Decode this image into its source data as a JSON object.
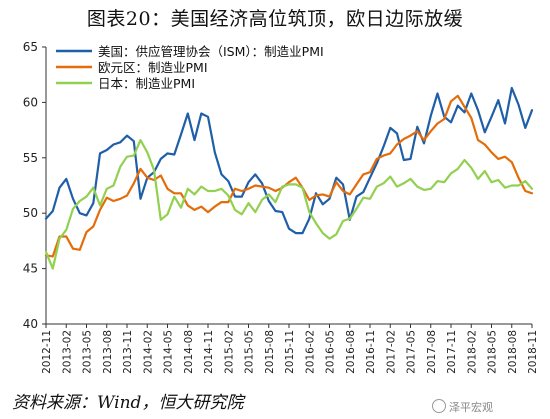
{
  "header": {
    "title": "图表20：美国经济高位筑顶，欧日边际放缓"
  },
  "footer": {
    "source": "资料来源：Wind，恒大研究院",
    "watermark": "泽平宏观"
  },
  "chart_data": {
    "type": "line",
    "title": "图表20：美国经济高位筑顶，欧日边际放缓",
    "xlabel": "",
    "ylabel": "",
    "ylim": [
      40,
      65
    ],
    "yticks": [
      40,
      45,
      50,
      55,
      60,
      65
    ],
    "grid": false,
    "legend_position": "top-left",
    "x": [
      "2012-11",
      "2012-12",
      "2013-01",
      "2013-02",
      "2013-03",
      "2013-04",
      "2013-05",
      "2013-06",
      "2013-07",
      "2013-08",
      "2013-09",
      "2013-10",
      "2013-11",
      "2013-12",
      "2014-01",
      "2014-02",
      "2014-03",
      "2014-04",
      "2014-05",
      "2014-06",
      "2014-07",
      "2014-08",
      "2014-09",
      "2014-10",
      "2014-11",
      "2014-12",
      "2015-01",
      "2015-02",
      "2015-03",
      "2015-04",
      "2015-05",
      "2015-06",
      "2015-07",
      "2015-08",
      "2015-09",
      "2015-10",
      "2015-11",
      "2015-12",
      "2016-01",
      "2016-02",
      "2016-03",
      "2016-04",
      "2016-05",
      "2016-06",
      "2016-07",
      "2016-08",
      "2016-09",
      "2016-10",
      "2016-11",
      "2016-12",
      "2017-01",
      "2017-02",
      "2017-03",
      "2017-04",
      "2017-05",
      "2017-06",
      "2017-07",
      "2017-08",
      "2017-09",
      "2017-10",
      "2017-11",
      "2017-12",
      "2018-01",
      "2018-02",
      "2018-03",
      "2018-04",
      "2018-05",
      "2018-06",
      "2018-07",
      "2018-08",
      "2018-09",
      "2018-10",
      "2018-11"
    ],
    "xtick_labels": [
      "2012-11",
      "2013-02",
      "2013-05",
      "2013-08",
      "2013-11",
      "2014-02",
      "2014-05",
      "2014-08",
      "2014-11",
      "2015-02",
      "2015-05",
      "2015-08",
      "2015-11",
      "2016-02",
      "2016-05",
      "2016-08",
      "2016-11",
      "2017-02",
      "2017-05",
      "2017-08",
      "2017-11",
      "2018-02",
      "2018-05",
      "2018-08",
      "2018-11"
    ],
    "series": [
      {
        "name": "美国：供应管理协会（ISM）：制造业PMI",
        "color": "#1f5fa8",
        "values": [
          49.5,
          50.2,
          52.3,
          53.1,
          51.3,
          50.0,
          49.8,
          50.9,
          55.4,
          55.7,
          56.2,
          56.4,
          57.0,
          56.5,
          51.3,
          53.2,
          53.7,
          54.9,
          55.4,
          55.3,
          57.1,
          59.0,
          56.6,
          59.0,
          58.7,
          55.5,
          53.5,
          52.9,
          51.5,
          51.5,
          52.8,
          53.5,
          52.7,
          51.1,
          50.2,
          50.1,
          48.6,
          48.2,
          48.2,
          49.5,
          51.8,
          50.8,
          51.3,
          53.2,
          52.6,
          49.4,
          51.5,
          51.9,
          53.2,
          54.5,
          56.0,
          57.7,
          57.2,
          54.8,
          54.9,
          57.8,
          56.3,
          58.8,
          60.8,
          58.7,
          58.2,
          59.7,
          59.1,
          60.8,
          59.3,
          57.3,
          58.7,
          60.2,
          58.1,
          61.3,
          59.8,
          57.7,
          59.3
        ]
      },
      {
        "name": "欧元区：制造业PMI",
        "color": "#e46c0a",
        "values": [
          46.2,
          46.1,
          47.9,
          47.9,
          46.8,
          46.7,
          48.3,
          48.8,
          50.3,
          51.4,
          51.1,
          51.3,
          51.6,
          52.7,
          54.0,
          53.2,
          53.0,
          53.4,
          52.2,
          51.8,
          51.8,
          50.7,
          50.3,
          50.6,
          50.1,
          50.6,
          51.0,
          51.0,
          52.2,
          52.0,
          52.2,
          52.5,
          52.4,
          52.3,
          52.0,
          52.3,
          52.8,
          53.2,
          52.3,
          51.2,
          51.6,
          51.7,
          51.5,
          52.8,
          52.0,
          51.7,
          52.6,
          53.5,
          53.7,
          54.9,
          55.2,
          55.4,
          56.2,
          56.7,
          57.0,
          57.4,
          56.6,
          57.4,
          58.1,
          58.5,
          60.1,
          60.6,
          59.6,
          58.6,
          56.6,
          56.2,
          55.5,
          54.9,
          55.1,
          54.6,
          53.2,
          52.0,
          51.8
        ]
      },
      {
        "name": "日本：制造业PMI",
        "color": "#92d050",
        "values": [
          46.5,
          45.0,
          47.7,
          48.5,
          50.4,
          51.1,
          51.5,
          52.3,
          50.7,
          52.2,
          52.5,
          54.2,
          55.1,
          55.2,
          56.6,
          55.5,
          53.9,
          49.4,
          49.9,
          51.5,
          50.5,
          52.2,
          51.7,
          52.4,
          52.0,
          52.0,
          52.2,
          51.6,
          50.3,
          49.9,
          50.9,
          50.1,
          51.2,
          51.7,
          51.0,
          52.4,
          52.6,
          52.6,
          52.3,
          50.1,
          49.1,
          48.2,
          47.7,
          48.1,
          49.3,
          49.5,
          50.4,
          51.4,
          51.3,
          52.4,
          52.7,
          53.3,
          52.4,
          52.7,
          53.1,
          52.4,
          52.1,
          52.2,
          52.9,
          52.8,
          53.6,
          54.0,
          54.8,
          54.1,
          53.1,
          53.8,
          52.8,
          53.0,
          52.3,
          52.5,
          52.5,
          52.9,
          52.2
        ]
      }
    ]
  }
}
